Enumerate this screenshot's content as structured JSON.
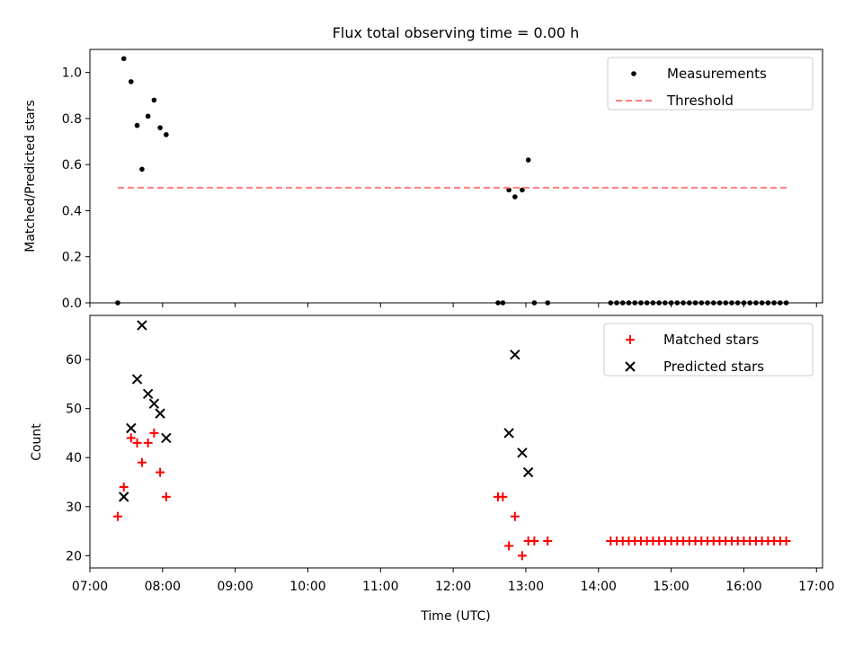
{
  "chart_data": [
    {
      "type": "scatter",
      "title": "Flux total observing time = 0.00 h",
      "xlabel": "",
      "ylabel": "Matched/Predicted stars",
      "xlim": [
        "07:00",
        "17:05"
      ],
      "ylim": [
        0,
        1.1
      ],
      "yticks": [
        "0.0",
        "0.2",
        "0.4",
        "0.6",
        "0.8",
        "1.0"
      ],
      "grid": false,
      "legend_position": "top-right",
      "series": [
        {
          "name": "Measurements",
          "marker": "dot",
          "color": "#000000",
          "points": [
            [
              "07:23",
              0.0
            ],
            [
              "07:28",
              1.06
            ],
            [
              "07:34",
              0.96
            ],
            [
              "07:39",
              0.77
            ],
            [
              "07:43",
              0.58
            ],
            [
              "07:48",
              0.81
            ],
            [
              "07:53",
              0.88
            ],
            [
              "07:58",
              0.76
            ],
            [
              "08:03",
              0.73
            ],
            [
              "12:37",
              0.0
            ],
            [
              "12:41",
              0.0
            ],
            [
              "12:46",
              0.49
            ],
            [
              "12:51",
              0.46
            ],
            [
              "12:57",
              0.49
            ],
            [
              "13:02",
              0.62
            ],
            [
              "13:07",
              0.0
            ],
            [
              "13:18",
              0.0
            ],
            [
              "14:10",
              0.0
            ],
            [
              "14:15",
              0.0
            ],
            [
              "14:20",
              0.0
            ],
            [
              "14:25",
              0.0
            ],
            [
              "14:30",
              0.0
            ],
            [
              "14:35",
              0.0
            ],
            [
              "14:40",
              0.0
            ],
            [
              "14:45",
              0.0
            ],
            [
              "14:50",
              0.0
            ],
            [
              "14:55",
              0.0
            ],
            [
              "15:00",
              0.0
            ],
            [
              "15:05",
              0.0
            ],
            [
              "15:10",
              0.0
            ],
            [
              "15:15",
              0.0
            ],
            [
              "15:20",
              0.0
            ],
            [
              "15:25",
              0.0
            ],
            [
              "15:30",
              0.0
            ],
            [
              "15:35",
              0.0
            ],
            [
              "15:40",
              0.0
            ],
            [
              "15:45",
              0.0
            ],
            [
              "15:50",
              0.0
            ],
            [
              "15:55",
              0.0
            ],
            [
              "16:00",
              0.0
            ],
            [
              "16:05",
              0.0
            ],
            [
              "16:10",
              0.0
            ],
            [
              "16:15",
              0.0
            ],
            [
              "16:20",
              0.0
            ],
            [
              "16:25",
              0.0
            ],
            [
              "16:30",
              0.0
            ],
            [
              "16:35",
              0.0
            ]
          ]
        },
        {
          "name": "Threshold",
          "marker": "dashed-line",
          "color": "#ff7f7f",
          "points": [
            [
              "07:23",
              0.5
            ],
            [
              "16:37",
              0.5
            ]
          ]
        }
      ]
    },
    {
      "type": "scatter",
      "title": "",
      "xlabel": "Time (UTC)",
      "ylabel": "Count",
      "xlim": [
        "07:00",
        "17:05"
      ],
      "ylim": [
        17.5,
        69
      ],
      "xticks": [
        "07:00",
        "08:00",
        "09:00",
        "10:00",
        "11:00",
        "12:00",
        "13:00",
        "14:00",
        "15:00",
        "16:00",
        "17:00"
      ],
      "yticks": [
        "20",
        "30",
        "40",
        "50",
        "60"
      ],
      "grid": false,
      "legend_position": "top-right",
      "series": [
        {
          "name": "Matched stars",
          "marker": "plus",
          "color": "#ff0000",
          "points": [
            [
              "07:23",
              28
            ],
            [
              "07:28",
              34
            ],
            [
              "07:34",
              44
            ],
            [
              "07:39",
              43
            ],
            [
              "07:43",
              39
            ],
            [
              "07:48",
              43
            ],
            [
              "07:53",
              45
            ],
            [
              "07:58",
              37
            ],
            [
              "08:03",
              32
            ],
            [
              "12:37",
              32
            ],
            [
              "12:41",
              32
            ],
            [
              "12:46",
              22
            ],
            [
              "12:51",
              28
            ],
            [
              "12:57",
              20
            ],
            [
              "13:02",
              23
            ],
            [
              "13:07",
              23
            ],
            [
              "13:18",
              23
            ],
            [
              "14:10",
              23
            ],
            [
              "14:15",
              23
            ],
            [
              "14:20",
              23
            ],
            [
              "14:25",
              23
            ],
            [
              "14:30",
              23
            ],
            [
              "14:35",
              23
            ],
            [
              "14:40",
              23
            ],
            [
              "14:45",
              23
            ],
            [
              "14:50",
              23
            ],
            [
              "14:55",
              23
            ],
            [
              "15:00",
              23
            ],
            [
              "15:05",
              23
            ],
            [
              "15:10",
              23
            ],
            [
              "15:15",
              23
            ],
            [
              "15:20",
              23
            ],
            [
              "15:25",
              23
            ],
            [
              "15:30",
              23
            ],
            [
              "15:35",
              23
            ],
            [
              "15:40",
              23
            ],
            [
              "15:45",
              23
            ],
            [
              "15:50",
              23
            ],
            [
              "15:55",
              23
            ],
            [
              "16:00",
              23
            ],
            [
              "16:05",
              23
            ],
            [
              "16:10",
              23
            ],
            [
              "16:15",
              23
            ],
            [
              "16:20",
              23
            ],
            [
              "16:25",
              23
            ],
            [
              "16:30",
              23
            ],
            [
              "16:35",
              23
            ]
          ]
        },
        {
          "name": "Predicted stars",
          "marker": "x",
          "color": "#000000",
          "points": [
            [
              "07:28",
              32
            ],
            [
              "07:34",
              46
            ],
            [
              "07:39",
              56
            ],
            [
              "07:43",
              67
            ],
            [
              "07:48",
              53
            ],
            [
              "07:53",
              51
            ],
            [
              "07:58",
              49
            ],
            [
              "08:03",
              44
            ],
            [
              "12:46",
              45
            ],
            [
              "12:51",
              61
            ],
            [
              "12:57",
              41
            ],
            [
              "13:02",
              37
            ]
          ]
        }
      ]
    }
  ]
}
